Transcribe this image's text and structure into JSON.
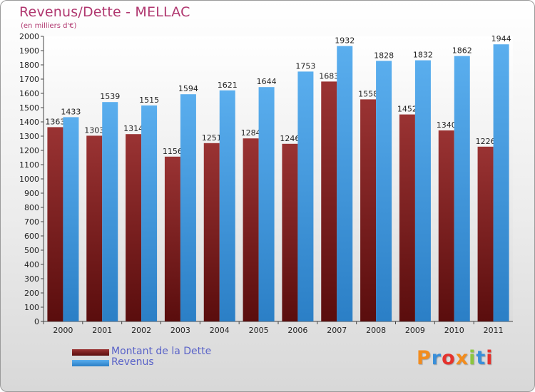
{
  "title": "Revenus/Dette - MELLAC",
  "subtitle": "(en milliers d'€)",
  "chart_data": {
    "type": "bar",
    "categories": [
      "2000",
      "2001",
      "2002",
      "2003",
      "2004",
      "2005",
      "2006",
      "2007",
      "2008",
      "2009",
      "2010",
      "2011"
    ],
    "series": [
      {
        "name": "Montant de la Dette",
        "values": [
          1363,
          1303,
          1314,
          1156,
          1251,
          1284,
          1246,
          1683,
          1558,
          1452,
          1340,
          1226
        ],
        "color": "#8a2828"
      },
      {
        "name": "Revenus",
        "values": [
          1433,
          1539,
          1515,
          1594,
          1621,
          1644,
          1753,
          1932,
          1828,
          1832,
          1862,
          1944
        ],
        "color": "#4aa3e8"
      }
    ],
    "ylim": [
      0,
      2000
    ],
    "yticks": [
      0,
      100,
      200,
      300,
      400,
      500,
      600,
      700,
      800,
      900,
      1000,
      1100,
      1200,
      1300,
      1400,
      1500,
      1600,
      1700,
      1800,
      1900,
      2000
    ],
    "grid": false,
    "legend": "bottom-left"
  },
  "logo": {
    "text": "Proxiti",
    "colors": [
      "#f28c1e",
      "#3a8fd9",
      "#e5322d",
      "#f28c1e",
      "#8cc63f",
      "#3a8fd9",
      "#e5322d"
    ]
  }
}
